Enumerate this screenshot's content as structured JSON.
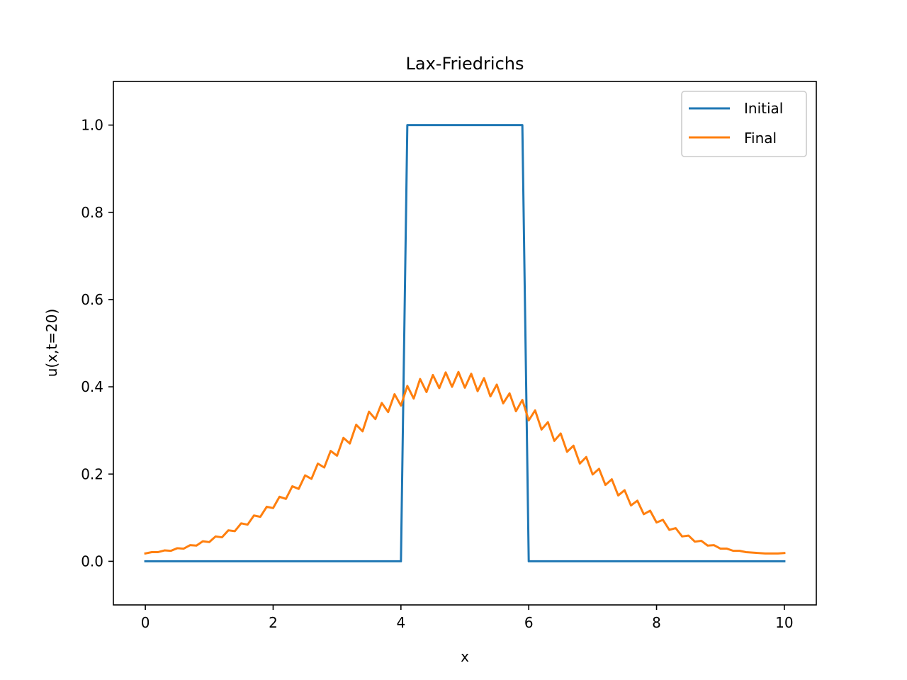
{
  "chart_data": {
    "type": "line",
    "title": "Lax-Friedrichs",
    "xlabel": "x",
    "ylabel": "u(x,t=20)",
    "xlim": [
      -0.5,
      10.5
    ],
    "ylim": [
      -0.1,
      1.1
    ],
    "xticks": [
      0,
      2,
      4,
      6,
      8,
      10
    ],
    "xtick_labels": [
      "0",
      "2",
      "4",
      "6",
      "8",
      "10"
    ],
    "yticks": [
      0.0,
      0.2,
      0.4,
      0.6,
      0.8,
      1.0
    ],
    "ytick_labels": [
      "0.0",
      "0.2",
      "0.4",
      "0.6",
      "0.8",
      "1.0"
    ],
    "grid": false,
    "legend_position": "top-right",
    "series": [
      {
        "name": "Initial",
        "color": "#1f77b4",
        "x": [
          0,
          4.0,
          4.1,
          5.9,
          6.0,
          10.0
        ],
        "y": [
          0,
          0,
          1,
          1,
          0,
          0
        ]
      },
      {
        "name": "Final",
        "color": "#ff7f0e",
        "x": [
          0.0,
          0.1,
          0.2,
          0.3,
          0.4,
          0.5,
          0.6,
          0.7,
          0.8,
          0.9,
          1.0,
          1.1,
          1.2,
          1.3,
          1.4,
          1.5,
          1.6,
          1.7,
          1.8,
          1.9,
          2.0,
          2.1,
          2.2,
          2.3,
          2.4,
          2.5,
          2.6,
          2.7,
          2.8,
          2.9,
          3.0,
          3.1,
          3.2,
          3.3,
          3.4,
          3.5,
          3.6,
          3.7,
          3.8,
          3.9,
          4.0,
          4.1,
          4.2,
          4.3,
          4.4,
          4.5,
          4.6,
          4.7,
          4.8,
          4.9,
          5.0,
          5.1,
          5.2,
          5.3,
          5.4,
          5.5,
          5.6,
          5.7,
          5.8,
          5.9,
          6.0,
          6.1,
          6.2,
          6.3,
          6.4,
          6.5,
          6.6,
          6.7,
          6.8,
          6.9,
          7.0,
          7.1,
          7.2,
          7.3,
          7.4,
          7.5,
          7.6,
          7.7,
          7.8,
          7.9,
          8.0,
          8.1,
          8.2,
          8.3,
          8.4,
          8.5,
          8.6,
          8.7,
          8.8,
          8.9,
          9.0,
          9.1,
          9.2,
          9.3,
          9.4,
          9.5,
          9.6,
          9.7,
          9.8,
          9.9,
          10.0
        ],
        "y": [
          0.018,
          0.021,
          0.021,
          0.025,
          0.024,
          0.03,
          0.029,
          0.037,
          0.036,
          0.046,
          0.044,
          0.057,
          0.055,
          0.071,
          0.069,
          0.087,
          0.084,
          0.105,
          0.102,
          0.125,
          0.122,
          0.148,
          0.143,
          0.172,
          0.166,
          0.197,
          0.189,
          0.224,
          0.215,
          0.253,
          0.242,
          0.283,
          0.27,
          0.313,
          0.298,
          0.343,
          0.326,
          0.363,
          0.342,
          0.383,
          0.357,
          0.402,
          0.373,
          0.418,
          0.388,
          0.427,
          0.397,
          0.433,
          0.4,
          0.434,
          0.398,
          0.43,
          0.39,
          0.42,
          0.378,
          0.405,
          0.362,
          0.385,
          0.344,
          0.37,
          0.323,
          0.346,
          0.302,
          0.319,
          0.276,
          0.293,
          0.251,
          0.265,
          0.224,
          0.239,
          0.199,
          0.212,
          0.175,
          0.188,
          0.151,
          0.163,
          0.128,
          0.139,
          0.108,
          0.116,
          0.089,
          0.095,
          0.072,
          0.076,
          0.057,
          0.059,
          0.045,
          0.047,
          0.036,
          0.037,
          0.029,
          0.029,
          0.024,
          0.024,
          0.021,
          0.02,
          0.019,
          0.018,
          0.018,
          0.018,
          0.019
        ]
      }
    ]
  }
}
